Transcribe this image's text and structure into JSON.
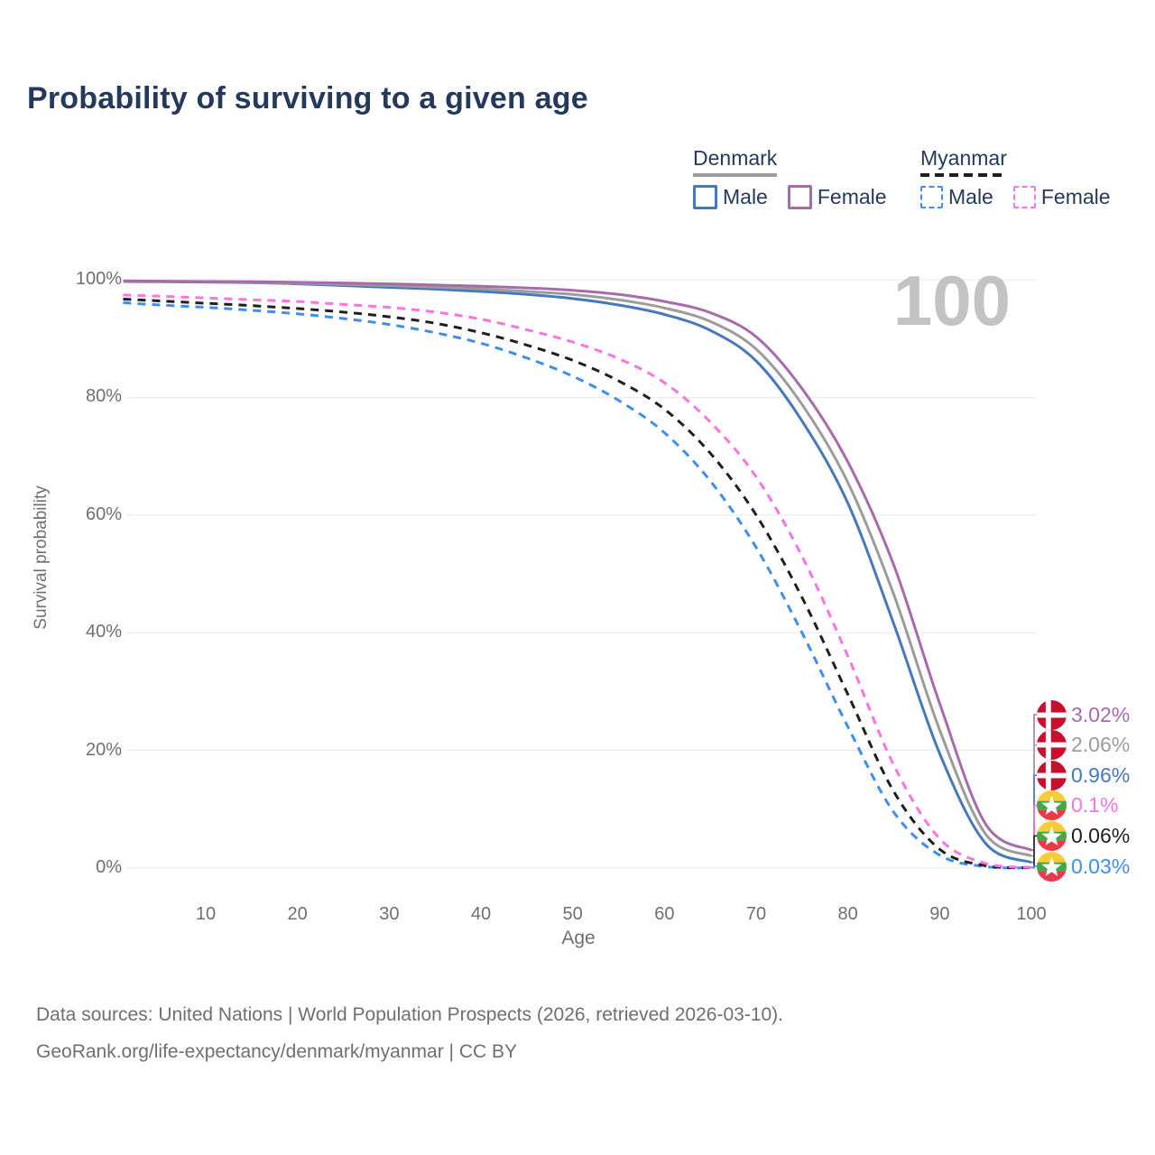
{
  "title": "Probability of surviving to a given age",
  "watermark_age": "100",
  "legend": {
    "groups": [
      {
        "name": "Denmark",
        "line_style": "solid",
        "line_color": "#9C9C9C",
        "items": [
          {
            "label": "Male",
            "color": "#4678BD"
          },
          {
            "label": "Female",
            "color": "#A76BAC"
          }
        ]
      },
      {
        "name": "Myanmar",
        "line_style": "dashed",
        "line_color": "#1F1F1F",
        "items": [
          {
            "label": "Male",
            "color": "#3E8DF0"
          },
          {
            "label": "Female",
            "color": "#FB74DF"
          }
        ]
      }
    ]
  },
  "chart_data": {
    "type": "line",
    "title": "Probability of surviving to a given age",
    "xlabel": "Age",
    "ylabel": "Survival probability",
    "xlim": [
      1,
      100
    ],
    "ylim": [
      0,
      100
    ],
    "xticks": [
      10,
      20,
      30,
      40,
      50,
      60,
      70,
      80,
      90,
      100
    ],
    "yticks": [
      0,
      20,
      40,
      60,
      80,
      100
    ],
    "grid": "horizontal",
    "legend_position": "top-right",
    "ages": [
      1,
      5,
      10,
      15,
      20,
      25,
      30,
      35,
      40,
      45,
      50,
      55,
      60,
      65,
      70,
      75,
      80,
      85,
      90,
      95,
      100
    ],
    "series": [
      {
        "name": "Denmark Female",
        "country": "denmark",
        "sex": "female",
        "style": "solid",
        "color": "#A76BAC",
        "end_label": "3.02%",
        "values": [
          99.8,
          99.75,
          99.7,
          99.65,
          99.55,
          99.45,
          99.3,
          99.1,
          98.9,
          98.6,
          98.2,
          97.5,
          96.3,
          94.4,
          90.3,
          81.5,
          69.0,
          51.5,
          28.0,
          7.5,
          3.02
        ]
      },
      {
        "name": "Denmark",
        "country": "denmark",
        "sex": "both",
        "style": "solid",
        "color": "#9C9C9C",
        "end_label": "2.06%",
        "values": [
          99.75,
          99.7,
          99.65,
          99.55,
          99.4,
          99.2,
          99.0,
          98.75,
          98.45,
          98.0,
          97.5,
          96.6,
          95.2,
          92.9,
          88.2,
          78.8,
          65.5,
          46.5,
          23.5,
          5.8,
          2.06
        ]
      },
      {
        "name": "Denmark Male",
        "country": "denmark",
        "sex": "male",
        "style": "solid",
        "color": "#4678BD",
        "end_label": "0.96%",
        "values": [
          99.7,
          99.65,
          99.6,
          99.5,
          99.3,
          99.0,
          98.7,
          98.4,
          98.0,
          97.5,
          96.8,
          95.7,
          94.1,
          91.4,
          86.2,
          76.0,
          62.0,
          41.5,
          19.5,
          4.2,
          0.96
        ]
      },
      {
        "name": "Myanmar Female",
        "country": "myanmar",
        "sex": "female",
        "style": "dashed",
        "color": "#FB74DF",
        "end_label": "0.1%",
        "values": [
          97.4,
          97.2,
          96.9,
          96.6,
          96.3,
          95.8,
          95.3,
          94.5,
          93.3,
          91.5,
          89.4,
          86.6,
          82.5,
          75.8,
          66.5,
          53.0,
          36.0,
          17.5,
          5.0,
          0.8,
          0.1
        ]
      },
      {
        "name": "Myanmar",
        "country": "myanmar",
        "sex": "both",
        "style": "dashed",
        "color": "#1F1F1F",
        "end_label": "0.06%",
        "values": [
          96.7,
          96.4,
          96.0,
          95.6,
          95.1,
          94.5,
          93.7,
          92.6,
          91.0,
          88.9,
          86.3,
          82.8,
          78.0,
          70.5,
          60.0,
          46.0,
          29.5,
          13.0,
          3.2,
          0.4,
          0.06
        ]
      },
      {
        "name": "Myanmar Male",
        "country": "myanmar",
        "sex": "male",
        "style": "dashed",
        "color": "#3E8DF0",
        "end_label": "0.03%",
        "values": [
          96.1,
          95.7,
          95.3,
          94.8,
          94.2,
          93.4,
          92.4,
          91.0,
          89.2,
          86.7,
          83.6,
          79.5,
          74.0,
          65.8,
          54.5,
          40.0,
          24.0,
          9.5,
          2.2,
          0.25,
          0.03
        ]
      }
    ]
  },
  "footer": {
    "line1": "Data sources: United Nations | World Population Prospects (2026, retrieved 2026-03-10).",
    "line2": "GeoRank.org/life-expectancy/denmark/myanmar | CC BY"
  }
}
